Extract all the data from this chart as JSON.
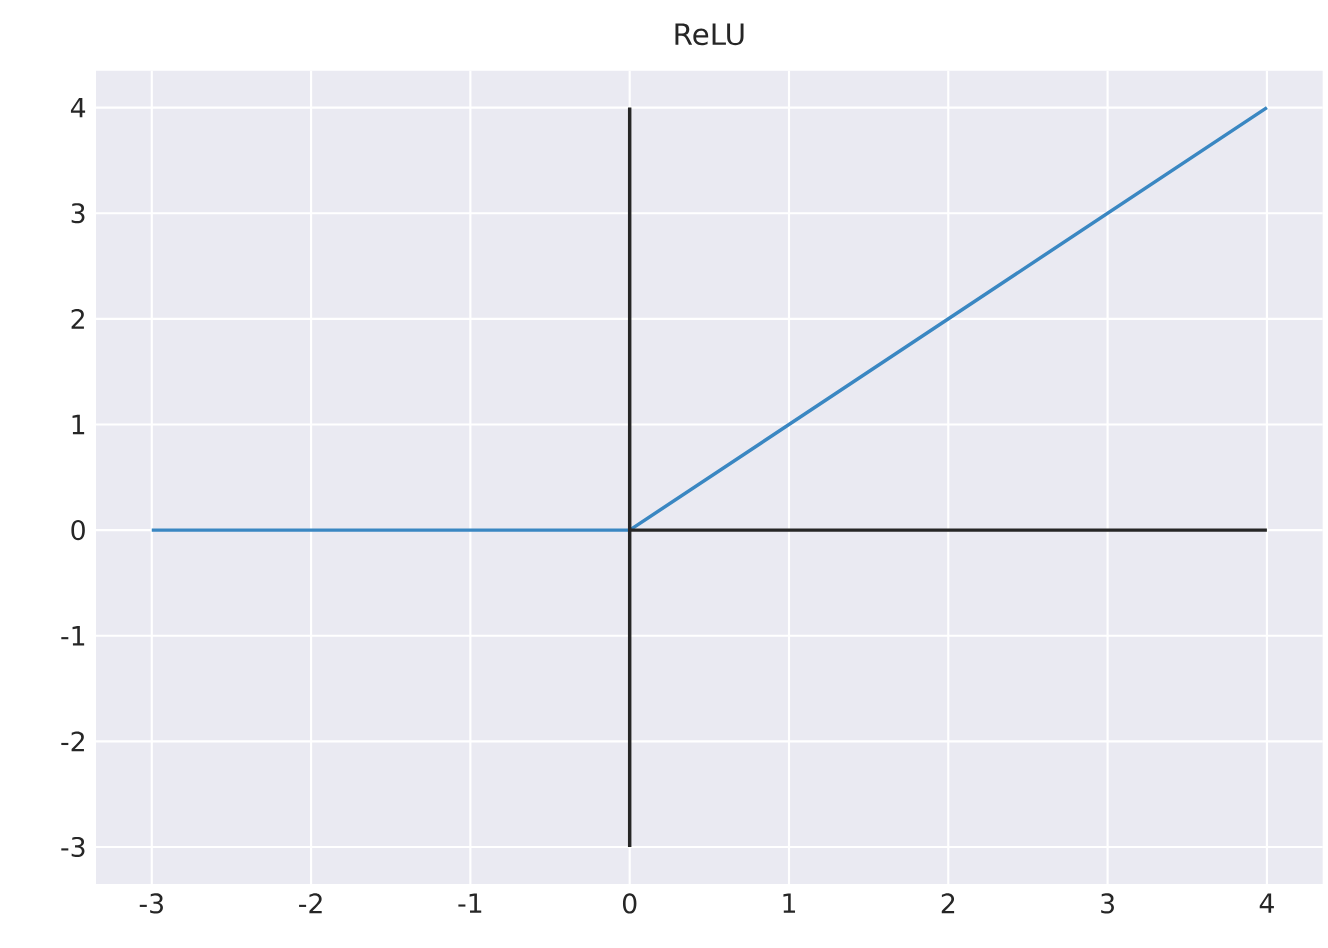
{
  "chart_data": {
    "type": "line",
    "title": "ReLU",
    "series": [
      {
        "color": "#3a87c2",
        "x": [
          -3,
          0,
          4
        ],
        "values": [
          0,
          0,
          4
        ]
      },
      {
        "color": "#262626",
        "x": [
          0,
          0
        ],
        "values": [
          -3,
          4
        ]
      },
      {
        "color": "#262626",
        "x": [
          0,
          4
        ],
        "values": [
          0,
          0
        ]
      }
    ],
    "xlim": [
      -3.35,
      4.35
    ],
    "ylim": [
      -3.35,
      4.35
    ],
    "xticks": [
      -3,
      -2,
      -1,
      0,
      1,
      2,
      3,
      4
    ],
    "yticks": [
      -3,
      -2,
      -1,
      0,
      1,
      2,
      3,
      4
    ],
    "grid": true,
    "marker": "none",
    "line_style": "solid"
  }
}
